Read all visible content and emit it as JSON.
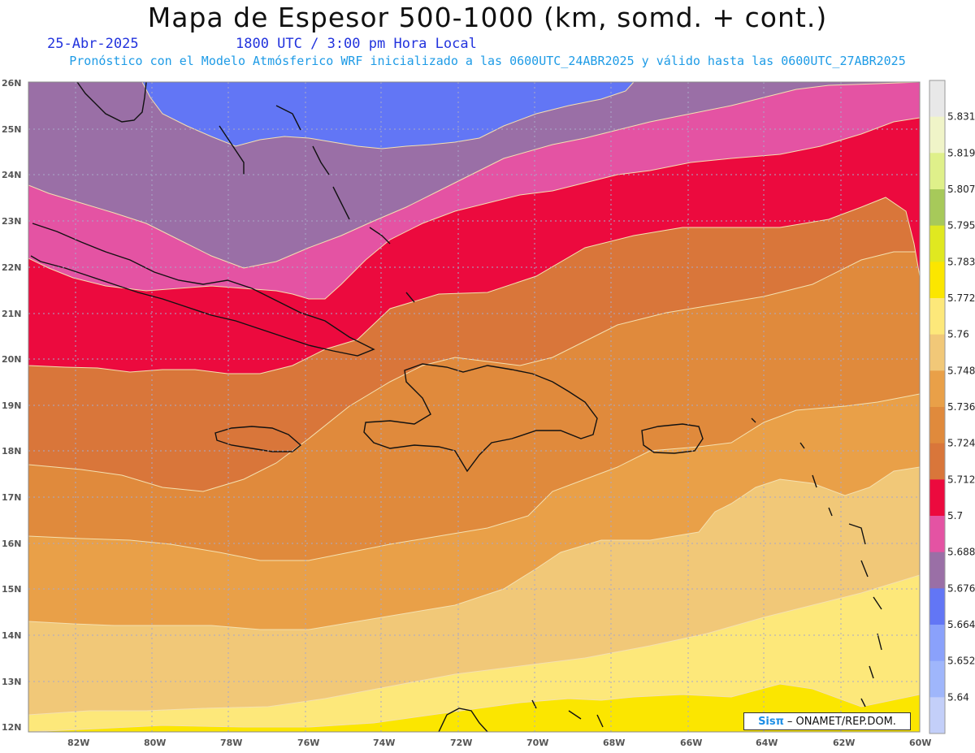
{
  "header": {
    "title": "Mapa de Espesor 500-1000 (km, somd. + cont.)",
    "date": "25-Abr-2025",
    "time": "1800 UTC / 3:00 pm Hora Local",
    "model_info": "Pronóstico con el Modelo Atmósferico WRF inicializado a las 0600UTC_24ABR2025 y válido hasta las  0600UTC_27ABR2025"
  },
  "axes": {
    "lat_labels": [
      "26N",
      "25N",
      "24N",
      "23N",
      "22N",
      "21N",
      "20N",
      "19N",
      "18N",
      "17N",
      "16N",
      "15N",
      "14N",
      "13N",
      "12N"
    ],
    "lon_labels": [
      "82W",
      "80W",
      "78W",
      "76W",
      "74W",
      "72W",
      "70W",
      "68W",
      "66W",
      "64W",
      "62W",
      "60W"
    ]
  },
  "colorbar": {
    "levels": [
      "5.831",
      "5.819",
      "5.807",
      "5.795",
      "5.783",
      "5.772",
      "5.76",
      "5.748",
      "5.736",
      "5.724",
      "5.712",
      "5.7",
      "5.688",
      "5.676",
      "5.664",
      "5.652",
      "5.64"
    ],
    "colors": [
      "#e8e8e8",
      "#f0f4c8",
      "#dff08a",
      "#a7c95a",
      "#e0e820",
      "#fbe600",
      "#fde87a",
      "#f1c878",
      "#e9a048",
      "#e08a3c",
      "#d9763a",
      "#ec0a3e",
      "#e453a3",
      "#9a6fa6",
      "#6276f5",
      "#8aa1fb",
      "#9fb6fb",
      "#c3cff9"
    ]
  },
  "credit": {
    "brand": "Sisπ",
    "text": "– ONAMET/REP.DOM."
  }
}
